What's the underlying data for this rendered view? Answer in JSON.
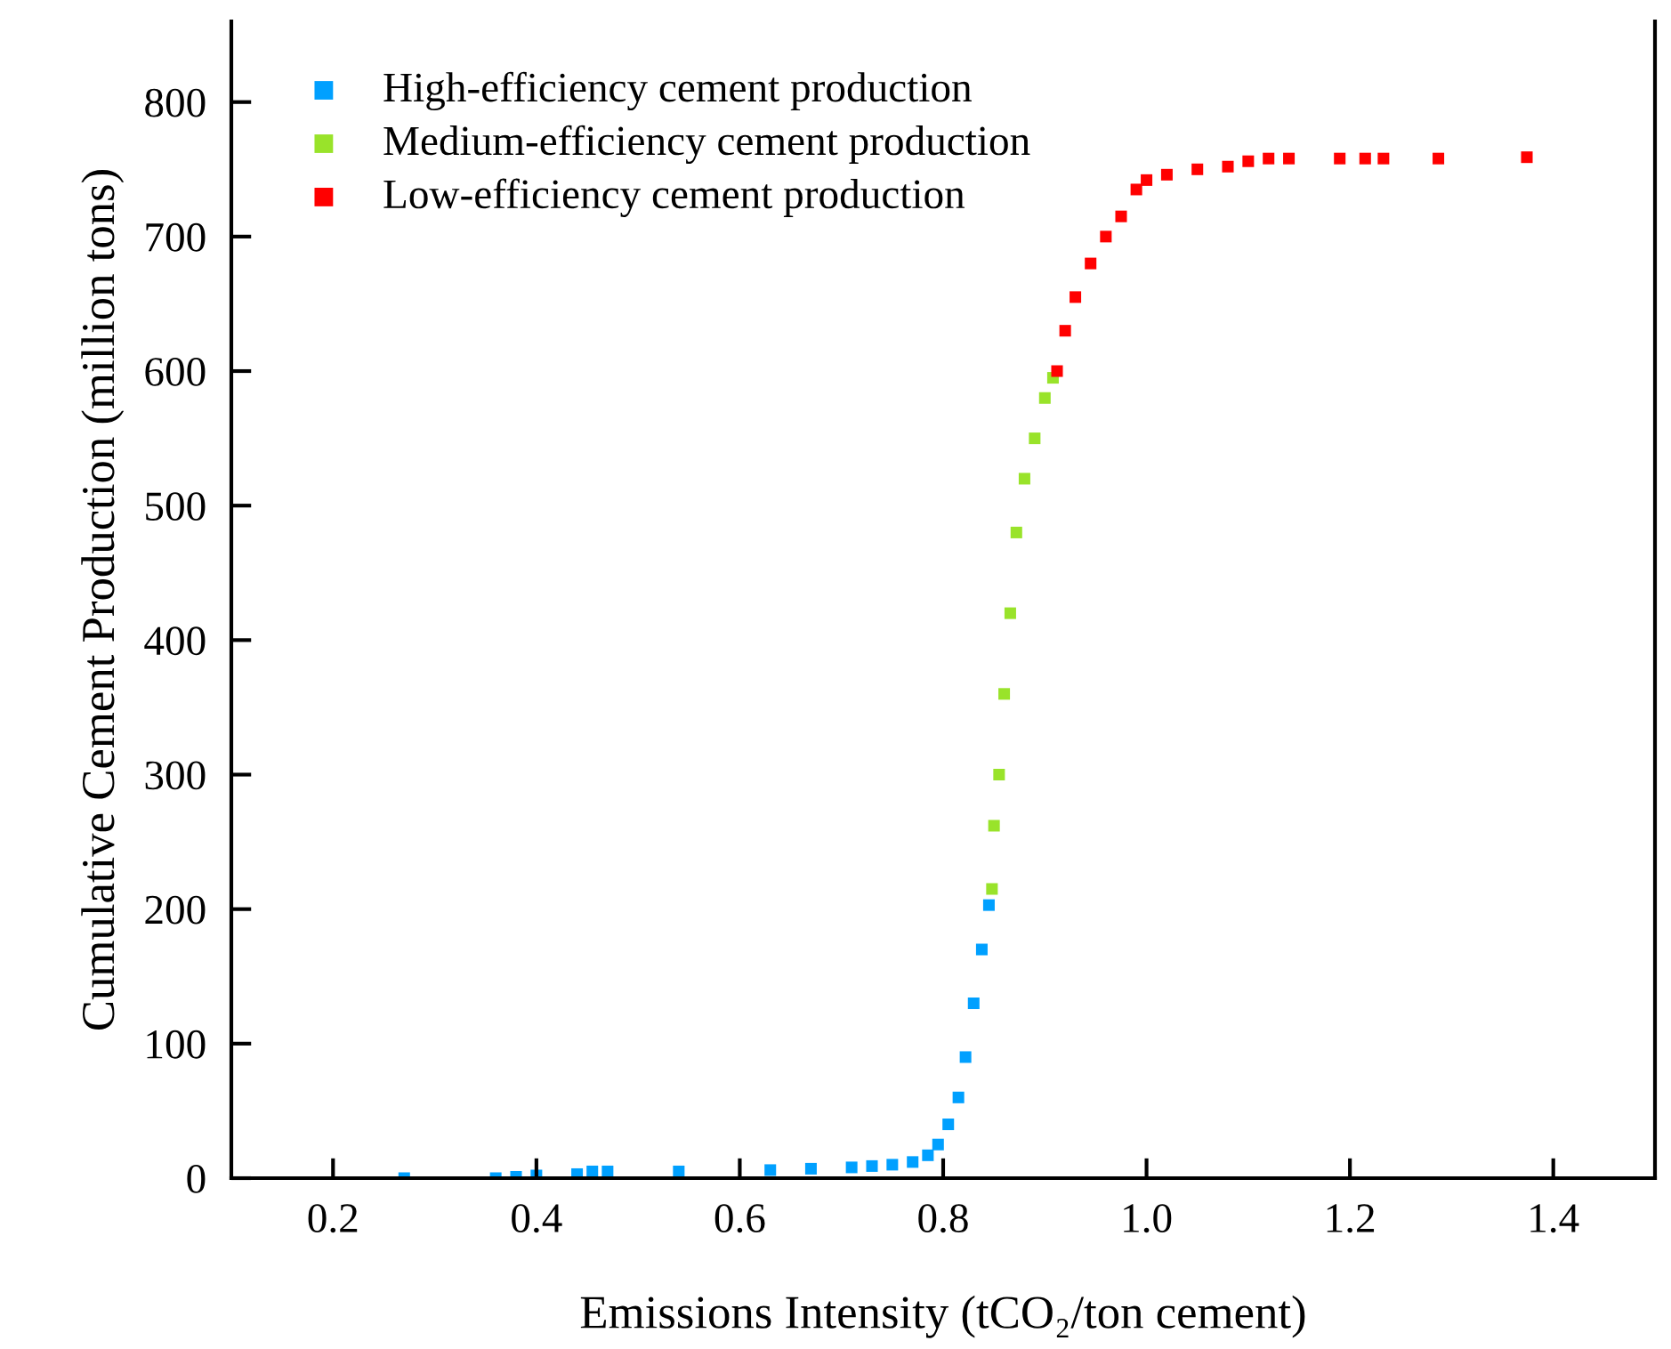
{
  "chart_data": {
    "type": "scatter",
    "xlabel": "Emissions Intensity (tCO₂/ton cement)",
    "ylabel": "Cumulative Cement Production (million tons)",
    "xlim": [
      0.1,
      1.5
    ],
    "xticks": [
      0.2,
      0.4,
      0.6,
      0.8,
      {
        "value": 1.0,
        "label": "1.0"
      },
      1.2,
      1.4
    ],
    "ylim": [
      0,
      860
    ],
    "yticks": [
      0,
      100,
      200,
      300,
      400,
      500,
      600,
      700,
      800
    ],
    "marker": "square",
    "legend": "top left",
    "grid": false,
    "series": [
      {
        "name": "High-efficiency cement production",
        "color": "#00a0ff",
        "x": [
          0.27,
          0.36,
          0.38,
          0.4,
          0.44,
          0.455,
          0.47,
          0.54,
          0.63,
          0.67,
          0.71,
          0.73,
          0.75,
          0.77,
          0.785,
          0.795,
          0.805,
          0.815,
          0.822,
          0.83,
          0.838,
          0.845
        ],
        "values": [
          0,
          0,
          1,
          2,
          3,
          5,
          5,
          5,
          6,
          7,
          8,
          9,
          10,
          12,
          17,
          25,
          40,
          60,
          90,
          130,
          170,
          203
        ]
      },
      {
        "name": "Medium-efficiency cement production",
        "color": "#99e32a",
        "x": [
          0.848,
          0.85,
          0.855,
          0.86,
          0.866,
          0.872,
          0.88,
          0.89,
          0.9,
          0.908
        ],
        "values": [
          215,
          262,
          300,
          360,
          420,
          480,
          520,
          550,
          580,
          595
        ]
      },
      {
        "name": "Low-efficiency cement production",
        "color": "#ff0000",
        "x": [
          0.912,
          0.92,
          0.93,
          0.945,
          0.96,
          0.975,
          0.99,
          1.0,
          1.02,
          1.05,
          1.08,
          1.1,
          1.12,
          1.14,
          1.19,
          1.215,
          1.233,
          1.287,
          1.374
        ],
        "values": [
          600,
          630,
          655,
          680,
          700,
          715,
          735,
          742,
          746,
          750,
          752,
          756,
          758,
          758,
          758,
          758,
          758,
          758,
          759
        ]
      }
    ]
  }
}
